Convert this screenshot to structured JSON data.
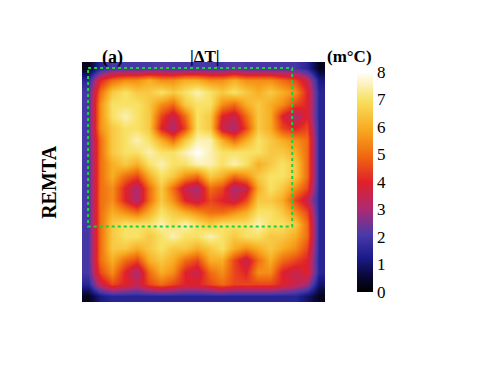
{
  "chart_data": {
    "type": "heatmap",
    "title": "|ΔT|",
    "panel_label": "(a)",
    "ylabel": "REMTA",
    "tick_labels": false,
    "colorbar": {
      "title": "(m°C)",
      "range": [
        0,
        8
      ],
      "ticks": [
        0,
        1,
        2,
        3,
        4,
        5,
        6,
        7,
        8
      ]
    },
    "cells": [
      [
        0.3,
        1.5,
        2,
        2,
        2,
        2,
        2.2,
        2,
        2,
        2,
        2,
        2,
        2.2,
        2,
        2,
        2,
        2,
        2,
        1.5,
        0.3
      ],
      [
        1.5,
        4,
        5,
        5.5,
        5.5,
        6,
        5.5,
        5.5,
        6,
        6,
        5.5,
        5.5,
        6,
        5.5,
        5.5,
        5.5,
        5,
        4.5,
        3.5,
        1.2
      ],
      [
        2,
        5,
        6.5,
        7,
        6.5,
        6.5,
        7,
        6.5,
        7,
        7.5,
        7,
        6.5,
        7,
        6.5,
        6,
        6.5,
        6,
        5.5,
        4,
        1.5
      ],
      [
        2,
        5.5,
        7,
        7,
        7,
        6.5,
        5.5,
        5,
        6.5,
        7,
        7,
        5.5,
        5,
        6,
        6.5,
        6,
        5.5,
        4.5,
        4,
        1.5
      ],
      [
        2,
        5.5,
        7,
        7.5,
        7,
        6.5,
        4.5,
        3.5,
        5,
        7,
        6.5,
        4,
        3.5,
        5,
        6.5,
        6,
        4,
        3,
        4,
        1.5
      ],
      [
        2,
        5.5,
        6.5,
        7,
        7,
        6.5,
        4,
        3,
        4.5,
        7,
        6.5,
        3.5,
        3,
        4.5,
        6.5,
        6,
        4.5,
        4,
        4.5,
        1.5
      ],
      [
        2,
        5,
        6.5,
        7,
        7.5,
        7,
        6,
        5,
        6.5,
        7.5,
        7.5,
        6,
        5,
        6,
        7,
        6.5,
        6,
        5.5,
        5,
        1.5
      ],
      [
        2,
        5,
        6.5,
        7,
        7,
        7.5,
        7,
        7,
        7.5,
        8,
        7.5,
        7,
        7,
        7,
        7,
        6.5,
        6.5,
        6,
        5,
        1.5
      ],
      [
        2,
        5,
        6,
        6.5,
        6,
        7,
        7.5,
        7,
        7,
        7.5,
        7.5,
        7,
        7.5,
        7,
        6,
        6.5,
        7,
        6.5,
        5,
        1.5
      ],
      [
        2,
        5,
        6,
        5,
        4.5,
        6,
        7,
        6.5,
        5.5,
        5,
        6.5,
        6,
        5,
        5.5,
        6.5,
        7,
        7,
        6.5,
        5,
        1.5
      ],
      [
        2,
        5,
        5.5,
        4,
        3,
        5,
        6.5,
        5,
        3.5,
        3,
        5,
        4.5,
        3,
        3.5,
        6,
        7,
        6.5,
        5.5,
        4.5,
        1.5
      ],
      [
        2,
        5,
        5.5,
        4,
        3,
        5,
        6.5,
        5.5,
        4,
        3.5,
        4.5,
        4,
        3.5,
        4.5,
        6.5,
        6.5,
        6,
        4.5,
        3.5,
        1.5
      ],
      [
        2,
        5,
        6,
        5.5,
        5,
        6,
        7,
        6.5,
        6,
        5.5,
        5,
        5,
        5.5,
        6,
        7,
        7,
        6.5,
        5.5,
        4.5,
        1.5
      ],
      [
        2,
        5,
        6.5,
        7,
        7,
        7,
        7.5,
        7,
        7.5,
        7,
        6.5,
        7,
        7,
        7,
        7.5,
        7,
        7,
        6.5,
        5,
        1.5
      ],
      [
        2,
        5,
        6.5,
        7,
        7,
        6.5,
        7,
        7.5,
        7,
        7,
        7.5,
        7,
        6.5,
        7,
        7,
        6.5,
        6.5,
        6,
        5,
        1.5
      ],
      [
        2,
        5,
        6.5,
        6.5,
        6,
        6.5,
        7,
        6.5,
        6.5,
        6,
        6.5,
        7,
        6,
        5.5,
        6,
        6.5,
        6,
        5.5,
        4.5,
        1.5
      ],
      [
        2,
        5,
        6,
        5,
        4.5,
        6,
        6.5,
        6,
        5,
        4.5,
        6,
        6,
        4.5,
        3.5,
        5,
        6,
        5,
        4.5,
        4,
        1.5
      ],
      [
        2,
        4.5,
        5.5,
        4,
        3,
        5,
        6,
        5.5,
        4,
        3.5,
        5,
        5.5,
        4.5,
        4,
        5.5,
        5.5,
        4,
        3.5,
        4,
        1.5
      ],
      [
        1.5,
        3.5,
        4.5,
        4,
        3.5,
        4.5,
        5,
        4.5,
        4,
        4,
        4.5,
        5,
        4.5,
        4.5,
        4.5,
        4.5,
        4,
        3.5,
        3,
        1
      ],
      [
        0.3,
        1.2,
        1.5,
        1.5,
        1.5,
        1.5,
        1.5,
        1.5,
        1.5,
        1.5,
        1.5,
        1.5,
        1.5,
        1.5,
        1.5,
        1.5,
        1.5,
        1.5,
        1,
        0.3
      ]
    ]
  }
}
